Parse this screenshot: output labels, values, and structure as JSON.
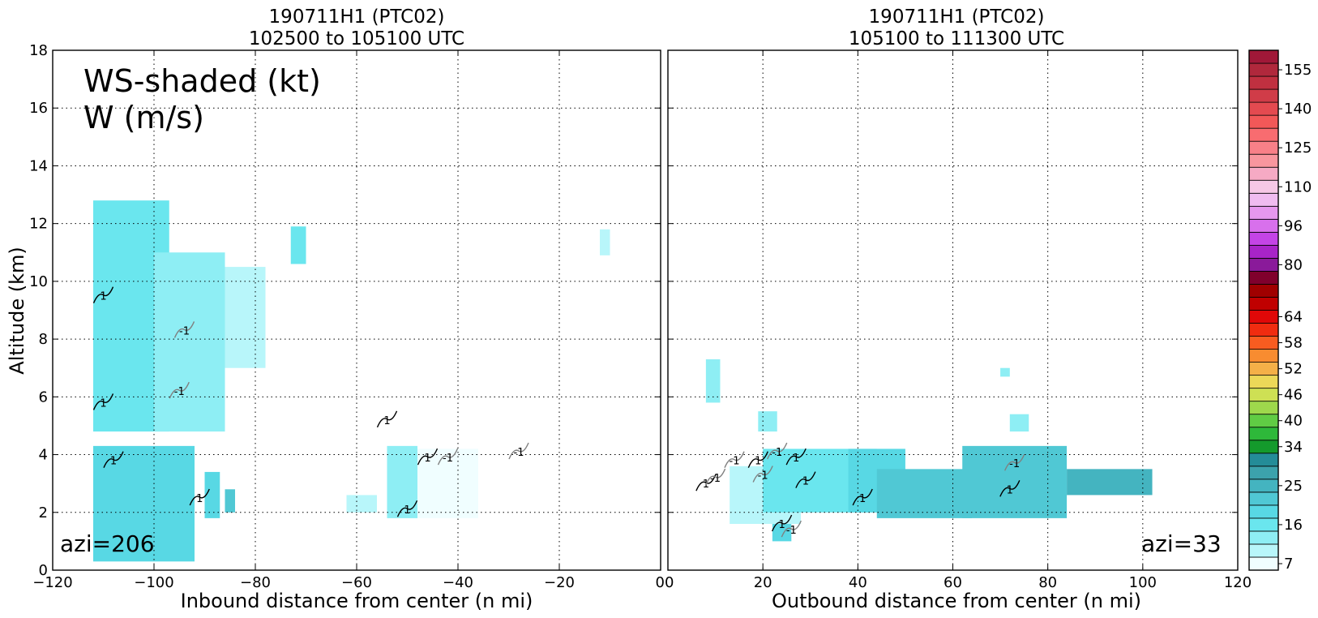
{
  "chart_data": [
    {
      "type": "heatmap",
      "title_line1": "190711H1 (PTC02)",
      "title_line2": "102500 to 105100 UTC",
      "xlabel": "Inbound distance from center (n mi)",
      "ylabel": "Altitude (km)",
      "xlim": [
        -120,
        0
      ],
      "ylim": [
        0,
        18
      ],
      "xticks": [
        -120,
        -100,
        -80,
        -60,
        -40,
        -20,
        0
      ],
      "xtick_labels": [
        "−120",
        "−100",
        "−80",
        "−60",
        "−40",
        "−20",
        "0"
      ],
      "yticks": [
        0,
        2,
        4,
        6,
        8,
        10,
        12,
        14,
        16,
        18
      ],
      "ytick_labels": [
        "0",
        "2",
        "4",
        "6",
        "8",
        "10",
        "12",
        "14",
        "16",
        "18"
      ],
      "grid": true,
      "annotation_line1": "WS-shaded (kt)",
      "annotation_line2": "W (m/s)",
      "azimuth_label": "azi=206",
      "regions": [
        {
          "x": [
            -112,
            -92
          ],
          "y": [
            0.3,
            4.3
          ],
          "ws": 20
        },
        {
          "x": [
            -112,
            -97
          ],
          "y": [
            4.8,
            12.8
          ],
          "ws": 16
        },
        {
          "x": [
            -100,
            -86
          ],
          "y": [
            4.8,
            11.0
          ],
          "ws": 13
        },
        {
          "x": [
            -86,
            -78
          ],
          "y": [
            7.0,
            10.5
          ],
          "ws": 10
        },
        {
          "x": [
            -73,
            -70
          ],
          "y": [
            10.6,
            11.9
          ],
          "ws": 18
        },
        {
          "x": [
            -90,
            -87
          ],
          "y": [
            1.8,
            3.4
          ],
          "ws": 20
        },
        {
          "x": [
            -86,
            -84
          ],
          "y": [
            2.0,
            2.8
          ],
          "ws": 22
        },
        {
          "x": [
            -62,
            -56
          ],
          "y": [
            2.0,
            2.6
          ],
          "ws": 12
        },
        {
          "x": [
            -54,
            -36
          ],
          "y": [
            1.8,
            4.2
          ],
          "ws": 9
        },
        {
          "x": [
            -54,
            -48
          ],
          "y": [
            1.8,
            4.3
          ],
          "ws": 14
        },
        {
          "x": [
            -12,
            -10
          ],
          "y": [
            10.9,
            11.8
          ],
          "ws": 12
        }
      ],
      "w_contours": [
        {
          "label": "1",
          "x": -110,
          "y": 9.5
        },
        {
          "label": "-1",
          "x": -94,
          "y": 8.3
        },
        {
          "label": "-1",
          "x": -95,
          "y": 6.2
        },
        {
          "label": "1",
          "x": -110,
          "y": 5.8
        },
        {
          "label": "1",
          "x": -108,
          "y": 3.8
        },
        {
          "label": "1",
          "x": -91,
          "y": 2.5
        },
        {
          "label": "1",
          "x": -54,
          "y": 5.2
        },
        {
          "label": "1",
          "x": -46,
          "y": 3.9
        },
        {
          "label": "-1",
          "x": -42,
          "y": 3.9
        },
        {
          "label": "1",
          "x": -50,
          "y": 2.1
        },
        {
          "label": "-1",
          "x": -28,
          "y": 4.1
        }
      ]
    },
    {
      "type": "heatmap",
      "title_line1": "190711H1 (PTC02)",
      "title_line2": "105100 to 111300 UTC",
      "xlabel": "Outbound distance from center (n mi)",
      "ylabel": "",
      "xlim": [
        0,
        120
      ],
      "ylim": [
        0,
        18
      ],
      "xticks": [
        0,
        20,
        40,
        60,
        80,
        100,
        120
      ],
      "xtick_labels": [
        "0",
        "20",
        "40",
        "60",
        "80",
        "100",
        "120"
      ],
      "grid": true,
      "azimuth_label": "azi=33",
      "regions": [
        {
          "x": [
            8,
            11
          ],
          "y": [
            5.8,
            7.3
          ],
          "ws": 14
        },
        {
          "x": [
            13,
            28
          ],
          "y": [
            1.6,
            3.6
          ],
          "ws": 10
        },
        {
          "x": [
            19,
            23
          ],
          "y": [
            4.8,
            5.5
          ],
          "ws": 14
        },
        {
          "x": [
            20,
            44
          ],
          "y": [
            2.0,
            4.2
          ],
          "ws": 16
        },
        {
          "x": [
            38,
            50
          ],
          "y": [
            2.0,
            4.2
          ],
          "ws": 20
        },
        {
          "x": [
            44,
            64
          ],
          "y": [
            1.8,
            3.5
          ],
          "ws": 24
        },
        {
          "x": [
            62,
            84
          ],
          "y": [
            1.8,
            4.3
          ],
          "ws": 24
        },
        {
          "x": [
            84,
            102
          ],
          "y": [
            2.6,
            3.5
          ],
          "ws": 25
        },
        {
          "x": [
            70,
            72
          ],
          "y": [
            6.7,
            7.0
          ],
          "ws": 14
        },
        {
          "x": [
            72,
            76
          ],
          "y": [
            4.8,
            5.4
          ],
          "ws": 14
        },
        {
          "x": [
            22,
            26
          ],
          "y": [
            1.0,
            1.6
          ],
          "ws": 20
        }
      ],
      "w_contours": [
        {
          "label": "-1",
          "x": 14,
          "y": 3.8
        },
        {
          "label": "1",
          "x": 8,
          "y": 3.0
        },
        {
          "label": "-1",
          "x": 10,
          "y": 3.2
        },
        {
          "label": "1",
          "x": 19,
          "y": 3.8
        },
        {
          "label": "-1",
          "x": 20,
          "y": 3.3
        },
        {
          "label": "-1",
          "x": 23,
          "y": 4.1
        },
        {
          "label": "1",
          "x": 27,
          "y": 3.9
        },
        {
          "label": "1",
          "x": 29,
          "y": 3.1
        },
        {
          "label": "1",
          "x": 41,
          "y": 2.5
        },
        {
          "label": "-1",
          "x": 73,
          "y": 3.7
        },
        {
          "label": "1",
          "x": 72,
          "y": 2.8
        },
        {
          "label": "1",
          "x": 24,
          "y": 1.6
        },
        {
          "label": "-1",
          "x": 26,
          "y": 1.4
        }
      ]
    }
  ],
  "colorbar": {
    "levels": [
      7,
      10,
      13,
      16,
      19,
      22,
      25,
      28,
      31,
      34,
      37,
      40,
      43,
      46,
      49,
      52,
      55,
      58,
      61,
      64,
      67,
      70,
      75,
      80,
      85,
      90,
      96,
      101,
      106,
      110,
      115,
      120,
      125,
      130,
      135,
      140,
      145,
      150,
      155,
      160
    ],
    "colors": [
      "#f0feff",
      "#b8f6fa",
      "#8eeef4",
      "#6ae6ee",
      "#58d8e4",
      "#50c8d4",
      "#44b4c0",
      "#3ca2ac",
      "#248c98",
      "#149a2c",
      "#2eb83a",
      "#60cc44",
      "#9ed84c",
      "#cee054",
      "#ecd858",
      "#f4b048",
      "#f88c30",
      "#f85c20",
      "#f02c10",
      "#e00808",
      "#c00000",
      "#a00000",
      "#80002c",
      "#8a1a9a",
      "#a824c8",
      "#c444e6",
      "#d870ec",
      "#e698ee",
      "#f0bcf0",
      "#f6c8e6",
      "#f6aac4",
      "#f8969e",
      "#f88088",
      "#f86c70",
      "#f25858",
      "#e44a50",
      "#d03c48",
      "#c03040",
      "#b0283c",
      "#a01838"
    ],
    "tick_labels": [
      "7",
      "16",
      "25",
      "34",
      "40",
      "46",
      "52",
      "58",
      "64",
      "80",
      "96",
      "110",
      "125",
      "140",
      "155"
    ],
    "tick_index": [
      0,
      3,
      6,
      9,
      11,
      13,
      15,
      17,
      19,
      23,
      26,
      29,
      32,
      35,
      38
    ]
  },
  "colors": {
    "positive_contour": "#000000",
    "negative_contour": "#808080",
    "grid": "#000000"
  }
}
